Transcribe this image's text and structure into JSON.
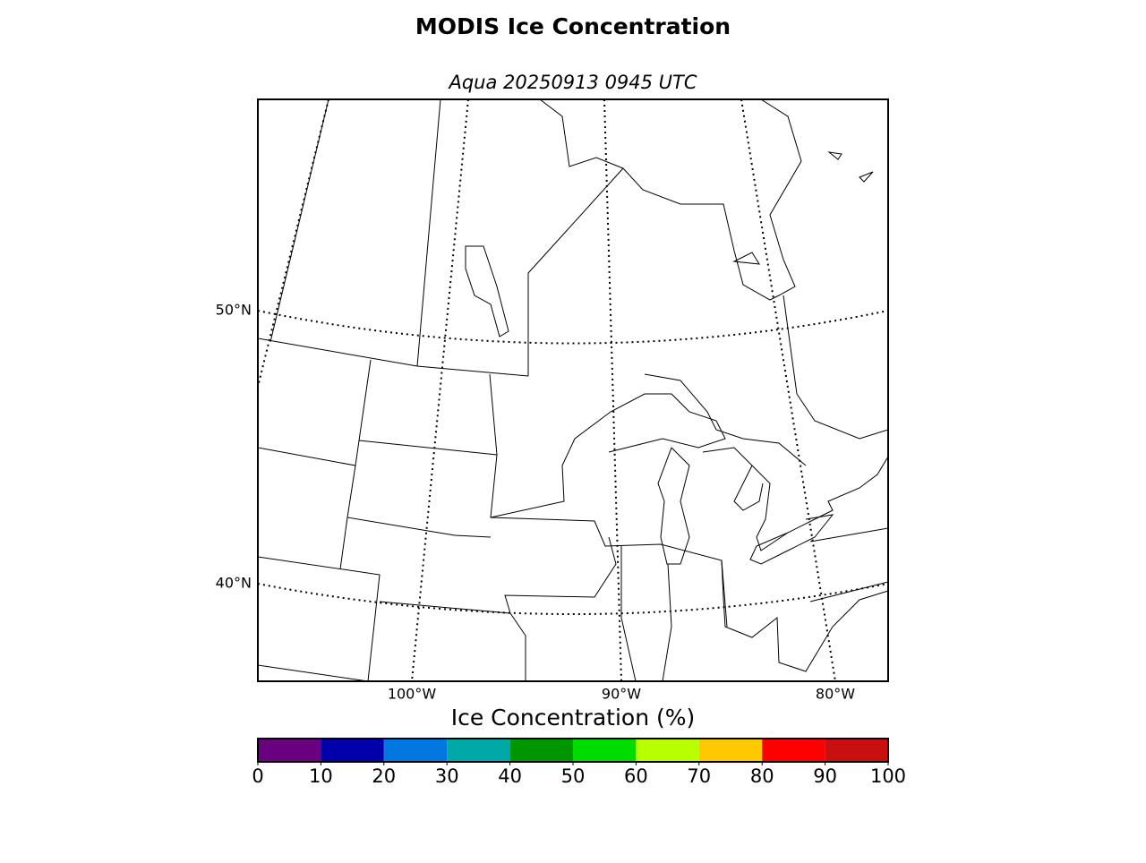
{
  "title": "MODIS Ice Concentration",
  "subtitle": "Aqua 20250913 0945 UTC",
  "map": {
    "lat_labels": [
      "50°N",
      "40°N"
    ],
    "lon_labels": [
      "100°W",
      "90°W",
      "80°W"
    ]
  },
  "colorbar": {
    "label": "Ice Concentration (%)",
    "ticks": [
      0,
      10,
      20,
      30,
      40,
      50,
      60,
      70,
      80,
      90,
      100
    ],
    "colors": [
      "#6a0080",
      "#0000aa",
      "#0078e0",
      "#00a8a8",
      "#009600",
      "#00dc00",
      "#b8ff00",
      "#ffc800",
      "#ff0000",
      "#c81010"
    ]
  }
}
